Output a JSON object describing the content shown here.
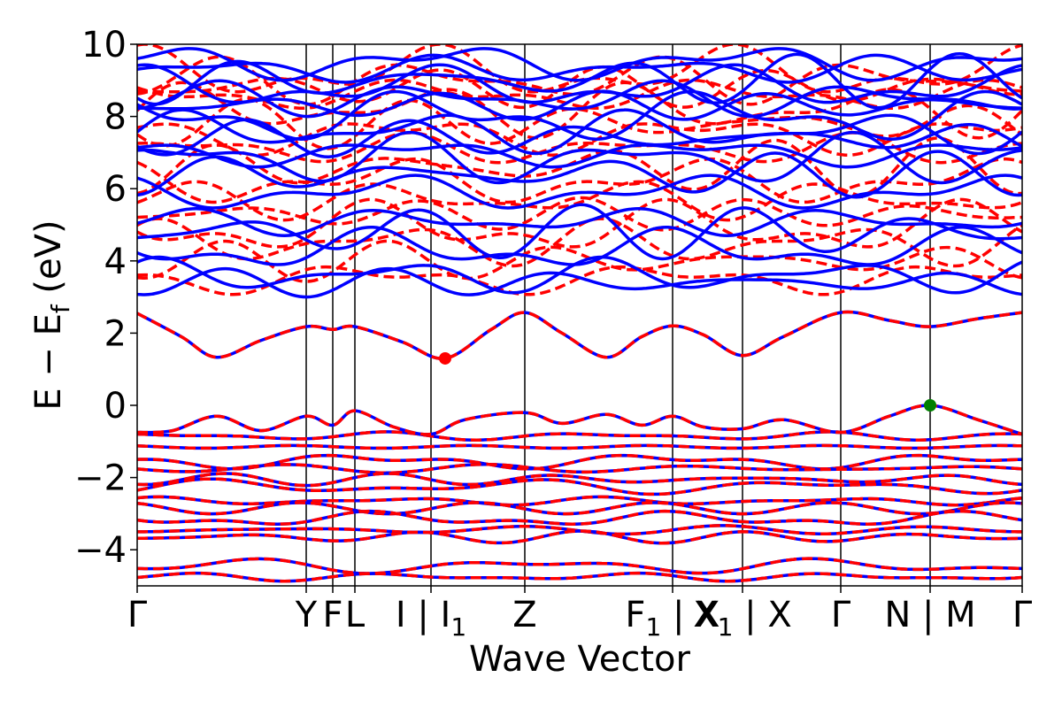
{
  "chart_data": {
    "type": "line",
    "xlabel": "Wave Vector",
    "ylabel": "E − E_f (eV)",
    "ylabel_parts": {
      "main": "E − E",
      "sub": "f",
      "unit": " (eV)"
    },
    "ylim": [
      -5,
      10
    ],
    "y_ticks": [
      {
        "value": -4,
        "label": "−4"
      },
      {
        "value": -2,
        "label": "−2"
      },
      {
        "value": 0,
        "label": "0"
      },
      {
        "value": 2,
        "label": "2"
      },
      {
        "value": 4,
        "label": "4"
      },
      {
        "value": 6,
        "label": "6"
      },
      {
        "value": 8,
        "label": "8"
      },
      {
        "value": 10,
        "label": "10"
      }
    ],
    "x_domain": [
      0,
      1
    ],
    "high_symmetry_points": [
      {
        "pos": 0.0,
        "label": "Γ"
      },
      {
        "pos": 0.191,
        "label": "Y"
      },
      {
        "pos": 0.221,
        "label": "F"
      },
      {
        "pos": 0.246,
        "label": "L"
      },
      {
        "pos": 0.332,
        "label": "I | I",
        "sub": "1"
      },
      {
        "pos": 0.438,
        "label": "Z"
      },
      {
        "pos": 0.605,
        "label": "F",
        "sub": "1",
        "after": " | X"
      },
      {
        "pos": 0.684,
        "label": "X",
        "sub": "1",
        "after": " | X"
      },
      {
        "pos": 0.795,
        "label": "Γ"
      },
      {
        "pos": 0.896,
        "label": "N | M"
      },
      {
        "pos": 1.0,
        "label": "Γ"
      }
    ],
    "vertical_lines": [
      0.191,
      0.221,
      0.246,
      0.332,
      0.438,
      0.605,
      0.684,
      0.795,
      0.896
    ],
    "grid": false,
    "markers": [
      {
        "name": "conduction band minimum",
        "x": 0.348,
        "y": 1.3,
        "color": "#ff0000"
      },
      {
        "name": "valence band maximum",
        "x": 0.896,
        "y": 0.0,
        "color": "#008000"
      }
    ],
    "series_styles": {
      "spin_up": {
        "color": "#0000ff",
        "style": "solid"
      },
      "spin_down": {
        "color": "#ff0000",
        "style": "dashed"
      }
    },
    "conduction_band_lowest": {
      "x": [
        0.0,
        0.05,
        0.09,
        0.14,
        0.191,
        0.221,
        0.246,
        0.3,
        0.348,
        0.4,
        0.438,
        0.48,
        0.53,
        0.57,
        0.605,
        0.64,
        0.684,
        0.73,
        0.795,
        0.85,
        0.896,
        0.95,
        1.0
      ],
      "y": [
        2.55,
        1.9,
        1.33,
        1.8,
        2.18,
        2.1,
        2.18,
        1.75,
        1.3,
        2.1,
        2.57,
        2.0,
        1.33,
        1.9,
        2.2,
        1.95,
        1.38,
        1.9,
        2.57,
        2.35,
        2.18,
        2.4,
        2.57
      ]
    },
    "valence_band_highest": {
      "x": [
        0.0,
        0.04,
        0.09,
        0.14,
        0.191,
        0.221,
        0.246,
        0.29,
        0.332,
        0.37,
        0.438,
        0.48,
        0.53,
        0.57,
        0.605,
        0.64,
        0.684,
        0.73,
        0.795,
        0.85,
        0.896,
        0.95,
        1.0
      ],
      "y": [
        -0.75,
        -0.7,
        -0.3,
        -0.7,
        -0.3,
        -0.55,
        -0.15,
        -0.6,
        -0.8,
        -0.4,
        -0.2,
        -0.5,
        -0.25,
        -0.55,
        -0.3,
        -0.6,
        -0.65,
        -0.4,
        -0.75,
        -0.3,
        0.0,
        -0.4,
        -0.8
      ]
    },
    "bands_below_ef": [
      -0.85,
      -1.15,
      -1.55,
      -1.75,
      -2.05,
      -2.25,
      -2.65,
      -2.85,
      -3.15,
      -3.45,
      -3.65,
      -4.45,
      -4.75
    ],
    "bands_above_ef_blue": [
      3.4,
      3.6,
      4.3,
      4.8,
      5.1,
      5.9,
      6.4,
      6.8,
      7.0,
      7.4,
      7.6,
      8.0,
      8.3,
      8.5,
      8.8,
      9.0,
      9.3,
      9.5
    ],
    "bands_above_ef_red": [
      3.5,
      4.0,
      4.5,
      4.9,
      5.3,
      5.7,
      6.2,
      6.6,
      7.1,
      7.5,
      7.8,
      8.2,
      8.6,
      8.8,
      9.0,
      9.2
    ]
  }
}
